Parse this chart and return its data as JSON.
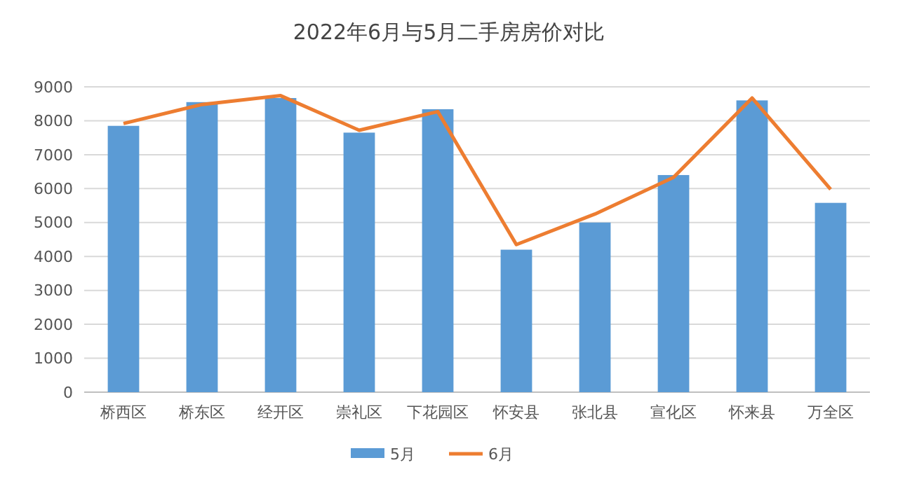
{
  "chart_data": {
    "type": "bar",
    "title": "2022年6月与5月二手房房价对比",
    "categories": [
      "桥西区",
      "桥东区",
      "经开区",
      "崇礼区",
      "下花园区",
      "怀安县",
      "张北县",
      "宣化区",
      "怀来县",
      "万全区"
    ],
    "series": [
      {
        "name": "5月",
        "color": "#5b9bd5",
        "values": [
          7850,
          8550,
          8670,
          7650,
          8340,
          4200,
          5000,
          6400,
          8600,
          5580
        ]
      },
      {
        "name": "6月",
        "type": "line",
        "color": "#ed7d31",
        "values": [
          7920,
          8480,
          8740,
          7720,
          8270,
          4350,
          5250,
          6330,
          8670,
          5980
        ]
      }
    ],
    "ylim": [
      0,
      9000
    ],
    "yticks": [
      0,
      1000,
      2000,
      3000,
      4000,
      5000,
      6000,
      7000,
      8000,
      9000
    ],
    "grid": "y",
    "legend": "bottom",
    "marker": "none"
  }
}
